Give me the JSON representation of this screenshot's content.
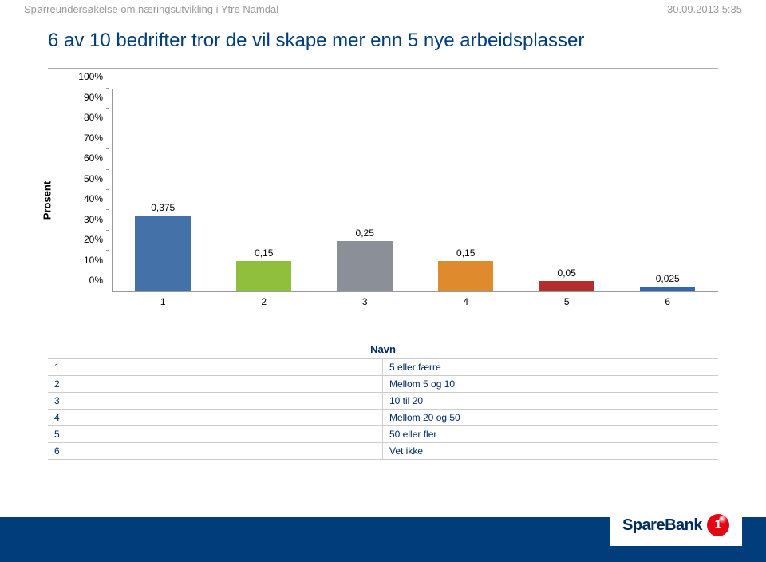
{
  "header": {
    "left": "Spørreundersøkelse om næringsutvikling i Ytre Namdal",
    "right": "30.09.2013 5:35"
  },
  "title": "6 av 10 bedrifter tror de vil skape mer enn 5 nye arbeidsplasser",
  "chart": {
    "type": "bar",
    "y_axis_label": "Prosent",
    "y_ticks": [
      "0%",
      "10%",
      "20%",
      "30%",
      "40%",
      "50%",
      "60%",
      "70%",
      "80%",
      "90%",
      "100%"
    ],
    "ylim": [
      0,
      100
    ],
    "ytick_step": 10,
    "categories": [
      "1",
      "2",
      "3",
      "4",
      "5",
      "6"
    ],
    "values": [
      37.5,
      15,
      25,
      15,
      5,
      2.5
    ],
    "value_labels": [
      "0,375",
      "0,15",
      "0,25",
      "0,15",
      "0,05",
      "0,025"
    ],
    "bar_colors": [
      "#4472a8",
      "#8fbf3d",
      "#8a8f98",
      "#e08a2e",
      "#b52e2e",
      "#3368b0"
    ],
    "background_color": "#ffffff",
    "tick_font_size": 12,
    "label_font_size": 13,
    "bar_width": 0.55
  },
  "legend": {
    "header": "Navn",
    "rows": [
      {
        "key": "1",
        "val": "5 eller færre"
      },
      {
        "key": "2",
        "val": "Mellom 5 og 10"
      },
      {
        "key": "3",
        "val": "10 til 20"
      },
      {
        "key": "4",
        "val": "Mellom 20 og 50"
      },
      {
        "key": "5",
        "val": "50 eller fler"
      },
      {
        "key": "6",
        "val": "Vet ikke"
      }
    ]
  },
  "footer": {
    "logo_text": "SpareBank",
    "logo_num": "1",
    "band_color": "#003d7a",
    "logo_circle_color": "#e30613"
  }
}
